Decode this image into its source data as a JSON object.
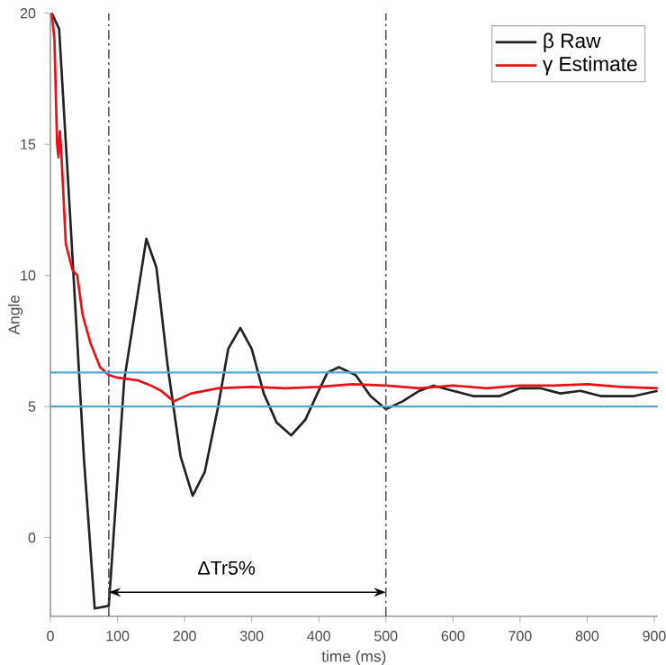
{
  "chart_data": {
    "type": "line",
    "xlabel": "time (ms)",
    "ylabel": "Angle",
    "xlim": [
      0,
      905
    ],
    "ylim": [
      -3,
      20
    ],
    "xticks": [
      0,
      100,
      200,
      300,
      400,
      500,
      600,
      700,
      800,
      900
    ],
    "yticks": [
      0,
      5,
      10,
      15,
      20
    ],
    "grid": false,
    "legend": "top right",
    "marker": "none",
    "series": [
      {
        "name": "β Raw",
        "color": "#222222",
        "x": [
          2,
          13,
          30,
          50,
          66,
          87,
          110,
          143,
          158,
          175,
          194,
          212,
          230,
          250,
          265,
          283,
          300,
          318,
          337,
          359,
          380,
          398,
          413,
          430,
          455,
          477,
          500,
          525,
          550,
          571,
          600,
          630,
          670,
          700,
          730,
          760,
          790,
          820,
          870,
          905
        ],
        "values": [
          20,
          19.4,
          12,
          3,
          -2.7,
          -2.6,
          6,
          11.4,
          10.3,
          6.5,
          3.1,
          1.6,
          2.5,
          5,
          7.2,
          8.0,
          7.2,
          5.5,
          4.4,
          3.9,
          4.5,
          5.5,
          6.3,
          6.5,
          6.2,
          5.4,
          4.9,
          5.2,
          5.6,
          5.8,
          5.6,
          5.4,
          5.4,
          5.7,
          5.7,
          5.5,
          5.6,
          5.4,
          5.4,
          5.6
        ]
      },
      {
        "name": "γ Estimate",
        "color": "#e8101a",
        "x": [
          2,
          6,
          10,
          12,
          14,
          16,
          23,
          33,
          40,
          48,
          60,
          74,
          87,
          100,
          130,
          150,
          165,
          184,
          210,
          250,
          300,
          350,
          400,
          450,
          500,
          550,
          600,
          650,
          700,
          750,
          800,
          850,
          905
        ],
        "values": [
          20,
          19,
          15,
          14.5,
          15.5,
          14.8,
          11.2,
          10.2,
          10,
          8.5,
          7.4,
          6.5,
          6.2,
          6.1,
          6.0,
          5.8,
          5.6,
          5.2,
          5.5,
          5.7,
          5.75,
          5.7,
          5.75,
          5.85,
          5.8,
          5.7,
          5.8,
          5.7,
          5.8,
          5.8,
          5.85,
          5.75,
          5.7
        ]
      }
    ],
    "ref_lines": [
      {
        "axis": "y",
        "value": 6.3,
        "color": "#5aa5d0"
      },
      {
        "axis": "y",
        "value": 5.0,
        "color": "#5aa5d0"
      },
      {
        "axis": "x",
        "value": 87,
        "color": "#555555",
        "line_style": "dashed"
      },
      {
        "axis": "x",
        "value": 500,
        "color": "#555555",
        "line_style": "dashed"
      }
    ],
    "annotations": [
      "ΔTr5%"
    ]
  }
}
